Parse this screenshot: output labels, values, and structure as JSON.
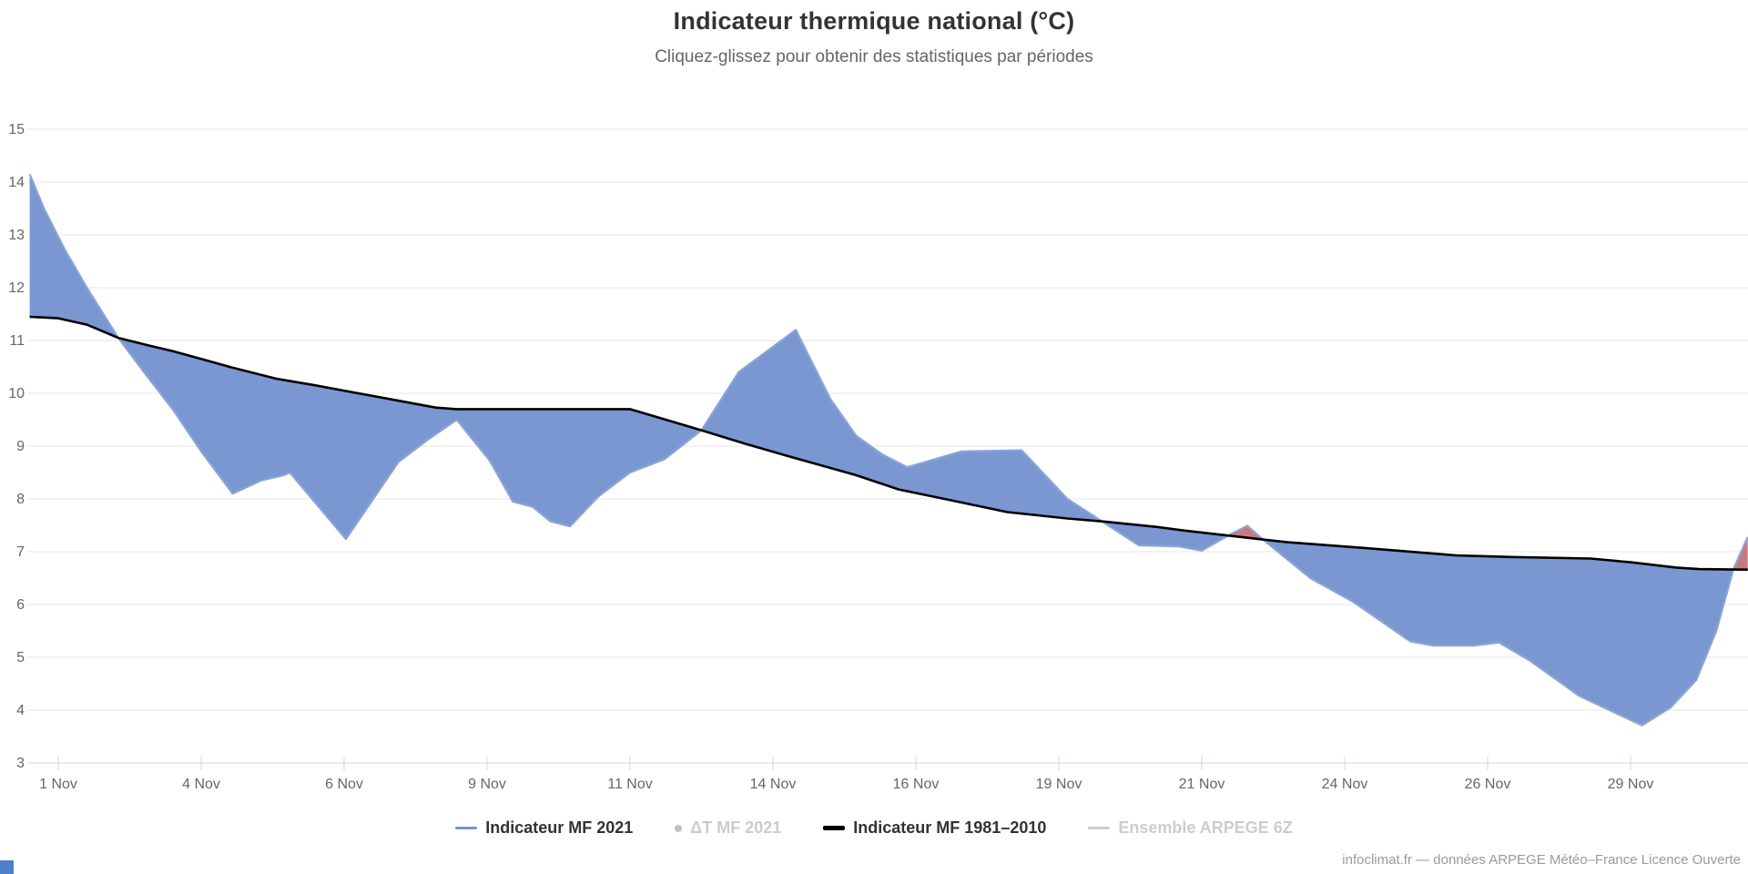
{
  "header": {
    "title": "Indicateur thermique national (°C)",
    "subtitle": "Cliquez-glissez pour obtenir des statistiques par périodes"
  },
  "footer": {
    "credit": "infoclimat.fr — données ARPEGE Météo–France Licence Ouverte"
  },
  "legend": {
    "items": [
      {
        "label": "Indicateur MF 2021",
        "swatch": "line",
        "swatch_color": "#6f96d2",
        "text_color": "#333333",
        "enabled": true
      },
      {
        "label": "ΔT MF 2021",
        "swatch": "dot",
        "swatch_color": "#c0c0c0",
        "text_color": "#cccccc",
        "enabled": false
      },
      {
        "label": "Indicateur MF 1981–2010",
        "swatch": "line-thick",
        "swatch_color": "#000000",
        "text_color": "#333333",
        "enabled": true
      },
      {
        "label": "Ensemble ARPEGE 6Z",
        "swatch": "line",
        "swatch_color": "#cccccc",
        "text_color": "#cccccc",
        "enabled": false
      }
    ]
  },
  "colors": {
    "above_normal_fill": "#c8797f",
    "below_normal_fill": "#7b97d1",
    "series_2021_line": "#8aa4d6",
    "normal_line": "#000000",
    "gridline": "#e6e6e6",
    "axis_line": "#ccd6eb",
    "tick_label": "#666666",
    "corner_square": "#4d80c8"
  },
  "chart_data": {
    "type": "area",
    "title": "Indicateur thermique national (°C)",
    "subtitle": "Cliquez-glissez pour obtenir des statistiques par périodes",
    "x_unit": "day of November 2021",
    "xlim": [
      0.5,
      30.55
    ],
    "ylim": [
      3,
      15
    ],
    "grid": true,
    "y_ticks": [
      3,
      4,
      5,
      6,
      7,
      8,
      9,
      10,
      11,
      12,
      13,
      14,
      15
    ],
    "x_ticks": [
      {
        "day": 1,
        "label": "1 Nov"
      },
      {
        "day": 3.5,
        "label": "4 Nov"
      },
      {
        "day": 6,
        "label": "6 Nov"
      },
      {
        "day": 8.5,
        "label": "9 Nov"
      },
      {
        "day": 11,
        "label": "11 Nov"
      },
      {
        "day": 13.5,
        "label": "14 Nov"
      },
      {
        "day": 16,
        "label": "16 Nov"
      },
      {
        "day": 18.5,
        "label": "19 Nov"
      },
      {
        "day": 21,
        "label": "21 Nov"
      },
      {
        "day": 23.5,
        "label": "24 Nov"
      },
      {
        "day": 26,
        "label": "26 Nov"
      },
      {
        "day": 28.5,
        "label": "29 Nov"
      }
    ],
    "series": [
      {
        "name": "Indicateur MF 2021",
        "role": "observed",
        "points": [
          [
            0.5,
            14.15
          ],
          [
            0.75,
            13.5
          ],
          [
            1.1,
            12.75
          ],
          [
            1.5,
            12.0
          ],
          [
            2.05,
            11.05
          ],
          [
            2.5,
            10.4
          ],
          [
            3.0,
            9.7
          ],
          [
            3.5,
            8.9
          ],
          [
            4.05,
            8.1
          ],
          [
            4.55,
            8.35
          ],
          [
            4.95,
            8.45
          ],
          [
            5.05,
            8.5
          ],
          [
            6.03,
            7.24
          ],
          [
            6.95,
            8.7
          ],
          [
            7.5,
            9.15
          ],
          [
            7.97,
            9.5
          ],
          [
            8.55,
            8.72
          ],
          [
            8.95,
            7.95
          ],
          [
            9.3,
            7.85
          ],
          [
            9.6,
            7.58
          ],
          [
            9.95,
            7.48
          ],
          [
            10.45,
            8.05
          ],
          [
            11.0,
            8.5
          ],
          [
            11.6,
            8.75
          ],
          [
            12.25,
            9.3
          ],
          [
            12.9,
            10.4
          ],
          [
            13.9,
            11.2
          ],
          [
            14.5,
            9.9
          ],
          [
            14.95,
            9.2
          ],
          [
            15.4,
            8.85
          ],
          [
            15.85,
            8.6
          ],
          [
            16.8,
            8.9
          ],
          [
            17.85,
            8.92
          ],
          [
            18.65,
            8.0
          ],
          [
            19.25,
            7.58
          ],
          [
            19.9,
            7.12
          ],
          [
            20.6,
            7.1
          ],
          [
            21.0,
            7.02
          ],
          [
            21.5,
            7.33
          ],
          [
            21.8,
            7.49
          ],
          [
            22.05,
            7.25
          ],
          [
            22.9,
            6.5
          ],
          [
            23.65,
            6.05
          ],
          [
            24.65,
            5.3
          ],
          [
            25.05,
            5.22
          ],
          [
            25.75,
            5.22
          ],
          [
            26.2,
            5.28
          ],
          [
            26.75,
            4.93
          ],
          [
            27.6,
            4.27
          ],
          [
            28.7,
            3.71
          ],
          [
            29.2,
            4.05
          ],
          [
            29.65,
            4.57
          ],
          [
            30.0,
            5.5
          ],
          [
            30.3,
            6.67
          ],
          [
            30.55,
            7.28
          ]
        ]
      },
      {
        "name": "Indicateur MF 1981–2010",
        "role": "normal",
        "points": [
          [
            0.5,
            11.45
          ],
          [
            1.0,
            11.42
          ],
          [
            1.5,
            11.3
          ],
          [
            2.05,
            11.05
          ],
          [
            2.6,
            10.9
          ],
          [
            3.0,
            10.8
          ],
          [
            3.6,
            10.62
          ],
          [
            4.0,
            10.5
          ],
          [
            4.8,
            10.28
          ],
          [
            5.5,
            10.15
          ],
          [
            6.0,
            10.05
          ],
          [
            7.0,
            9.85
          ],
          [
            7.6,
            9.73
          ],
          [
            7.97,
            9.7
          ],
          [
            11.0,
            9.7
          ],
          [
            12.25,
            9.3
          ],
          [
            13.0,
            9.05
          ],
          [
            13.8,
            8.8
          ],
          [
            14.95,
            8.45
          ],
          [
            15.7,
            8.18
          ],
          [
            16.5,
            8.0
          ],
          [
            17.6,
            7.75
          ],
          [
            18.65,
            7.63
          ],
          [
            19.3,
            7.57
          ],
          [
            20.2,
            7.47
          ],
          [
            20.7,
            7.4
          ],
          [
            21.75,
            7.27
          ],
          [
            22.5,
            7.18
          ],
          [
            23.85,
            7.07
          ],
          [
            25.45,
            6.93
          ],
          [
            26.4,
            6.9
          ],
          [
            27.8,
            6.87
          ],
          [
            28.5,
            6.8
          ],
          [
            29.3,
            6.7
          ],
          [
            29.7,
            6.67
          ],
          [
            30.55,
            6.66
          ]
        ]
      }
    ],
    "legend_entries": [
      "Indicateur MF 2021",
      "ΔT MF 2021",
      "Indicateur MF 1981–2010",
      "Ensemble ARPEGE 6Z"
    ],
    "legend_position": "bottom-center"
  }
}
